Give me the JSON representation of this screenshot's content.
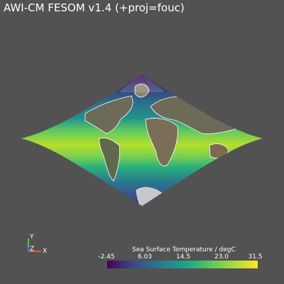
{
  "title": "AWI-CM FESOM v1.4 (+proj=fouc)",
  "axes": {
    "y_label": "Y",
    "z_label": "Z",
    "x_label": "X"
  },
  "colorbar": {
    "title": "Sea Surface Temperature / degC",
    "ticks": [
      "-2.45",
      "6.03",
      "14.5",
      "23.0",
      "31.5"
    ],
    "min": -2.45,
    "max": 31.5,
    "colormap": "viridis"
  },
  "colors": {
    "background": "#525252",
    "land": "#6e6a58",
    "coastline": "#ffffff",
    "antarctica": "#c8c8cc"
  }
}
